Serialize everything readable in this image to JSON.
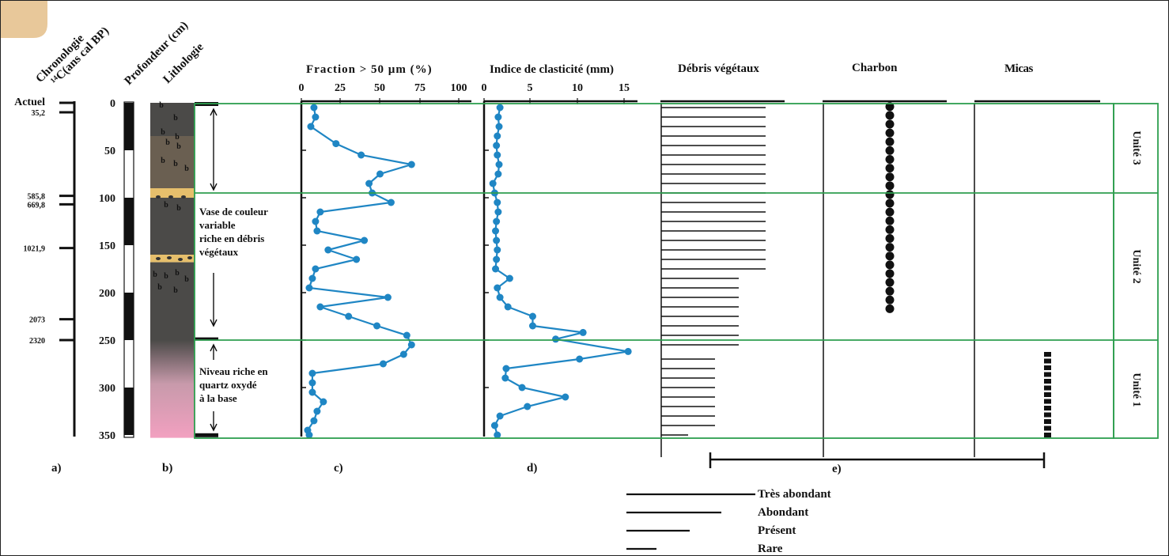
{
  "headers": {
    "chronologie": "Chronologie",
    "c14": "¹⁴C(ans cal BP)",
    "profondeur": "Profondeur (cm)",
    "lithologie": "Lithologie",
    "fraction": "Fraction > 50 µm (%)",
    "clasticite": "Indice de clasticité (mm)",
    "debris": "Débris végétaux",
    "charbon": "Charbon",
    "micas": "Micas"
  },
  "panel_labels": {
    "a": "a)",
    "b": "b)",
    "c": "c)",
    "d": "d)",
    "e": "e)"
  },
  "depth_ticks": [
    "0",
    "50",
    "100",
    "150",
    "200",
    "250",
    "300",
    "350"
  ],
  "chronology": [
    {
      "label": "Actuel",
      "depth": 0,
      "size": "large"
    },
    {
      "label": "35,2",
      "depth": 10,
      "size": "small"
    },
    {
      "label": "585,8",
      "depth": 98,
      "size": "small"
    },
    {
      "label": "669,8",
      "depth": 107,
      "size": "small"
    },
    {
      "label": "1021,9",
      "depth": 153,
      "size": "small"
    },
    {
      "label": "2073",
      "depth": 228,
      "size": "small"
    },
    {
      "label": "2320",
      "depth": 250,
      "size": "small"
    }
  ],
  "lithology_notes": {
    "unit2": [
      "Vase de couleur",
      "variable",
      "riche en débris",
      "végétaux"
    ],
    "unit1": [
      "Niveau riche en",
      "quartz oxydé",
      "à la base"
    ]
  },
  "units": [
    {
      "label": "Unité 3",
      "top": 0,
      "bottom": 95
    },
    {
      "label": "Unité 2",
      "top": 95,
      "bottom": 250
    },
    {
      "label": "Unité 1",
      "top": 250,
      "bottom": 355
    }
  ],
  "legend": {
    "title": "",
    "items": [
      {
        "label": "Très abondant",
        "level": 4
      },
      {
        "label": "Abondant",
        "level": 3
      },
      {
        "label": "Présent",
        "level": 2
      },
      {
        "label": "Rare",
        "level": 1
      }
    ]
  },
  "colors": {
    "series": "#1f86c4",
    "units": "#2e9e4f",
    "sand": "#e6bf6c",
    "mud": "#4b4a48",
    "mud_brown": "#6a5f51",
    "base_pink": "#f2a0c0"
  },
  "chart_data": [
    {
      "type": "line",
      "title": "Fraction > 50 µm (%)",
      "xlabel": "Fraction > 50 µm (%)",
      "ylabel": "Profondeur (cm)",
      "x_ticks": [
        "0",
        "25",
        "50",
        "75",
        "100"
      ],
      "xlim": [
        0,
        100
      ],
      "ylim": [
        0,
        355
      ],
      "series": [
        {
          "depth": [
            5,
            15,
            25,
            43,
            55,
            65,
            75,
            85,
            95,
            105,
            115,
            125,
            135,
            145,
            155,
            165,
            175,
            185,
            195,
            205,
            215,
            225,
            235,
            245,
            255,
            265,
            275,
            285,
            295,
            305,
            315,
            325,
            335,
            345,
            350
          ],
          "values": [
            8,
            9,
            6,
            22,
            38,
            70,
            50,
            43,
            45,
            57,
            12,
            9,
            10,
            40,
            17,
            35,
            9,
            7,
            5,
            55,
            12,
            30,
            48,
            67,
            70,
            65,
            52,
            7,
            7,
            7,
            14,
            10,
            8,
            4,
            5
          ]
        }
      ]
    },
    {
      "type": "line",
      "title": "Indice de clasticité (mm)",
      "xlabel": "Indice de clasticité (mm)",
      "ylabel": "Profondeur (cm)",
      "x_ticks": [
        "0",
        "5",
        "10",
        "15"
      ],
      "xlim": [
        0,
        17
      ],
      "ylim": [
        0,
        355
      ],
      "series": [
        {
          "depth": [
            5,
            15,
            25,
            35,
            45,
            55,
            65,
            75,
            85,
            95,
            105,
            115,
            125,
            135,
            145,
            155,
            165,
            175,
            185,
            195,
            205,
            215,
            225,
            235,
            242,
            249,
            262,
            270,
            280,
            290,
            300,
            310,
            320,
            330,
            340,
            350
          ],
          "values": [
            1.8,
            1.6,
            1.7,
            1.5,
            1.4,
            1.5,
            1.7,
            1.6,
            1.0,
            1.2,
            1.5,
            1.6,
            1.4,
            1.3,
            1.4,
            1.5,
            1.4,
            1.3,
            2.9,
            1.5,
            1.8,
            2.7,
            5.5,
            5.5,
            11.2,
            8.1,
            16.3,
            10.8,
            2.5,
            2.4,
            4.3,
            9.2,
            4.9,
            1.8,
            1.2,
            1.5
          ]
        }
      ]
    },
    {
      "type": "bar",
      "title": "Débris végétaux",
      "ylabel": "Profondeur (cm)",
      "series": [
        {
          "name": "",
          "depth_range": [
            0,
            180
          ],
          "level": 4
        },
        {
          "name": "",
          "depth_range": [
            180,
            265
          ],
          "level": 3
        },
        {
          "name": "",
          "depth_range": [
            265,
            345
          ],
          "level": 2
        },
        {
          "name": "",
          "depth_range": [
            345,
            355
          ],
          "level": 1
        }
      ]
    },
    {
      "type": "scatter",
      "title": "Charbon",
      "ylabel": "Profondeur (cm)",
      "series": [
        {
          "name": "",
          "depth_range": [
            4,
            217
          ],
          "count": 24
        }
      ]
    },
    {
      "type": "scatter",
      "title": "Micas",
      "ylabel": "Profondeur (cm)",
      "series": [
        {
          "name": "",
          "depth_range": [
            265,
            350
          ],
          "count": 13
        }
      ]
    }
  ]
}
